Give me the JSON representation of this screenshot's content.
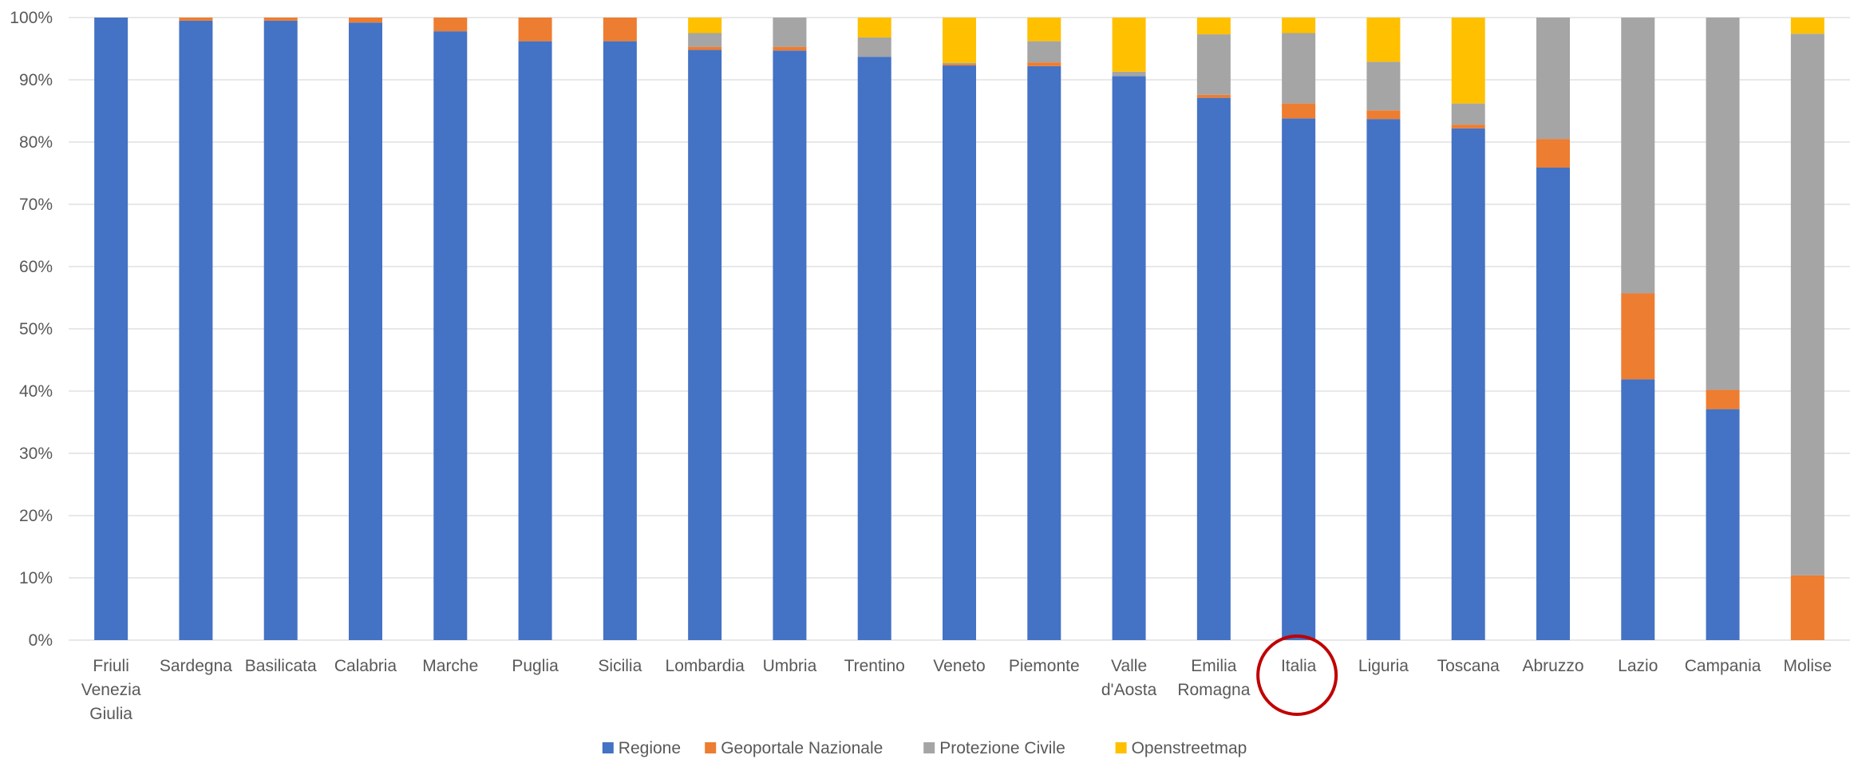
{
  "chart_data": {
    "type": "bar",
    "stacked": "percent",
    "categories": [
      [
        "Friuli",
        "Venezia",
        "Giulia"
      ],
      [
        "Sardegna"
      ],
      [
        "Basilicata"
      ],
      [
        "Calabria"
      ],
      [
        "Marche"
      ],
      [
        "Puglia"
      ],
      [
        "Sicilia"
      ],
      [
        "Lombardia"
      ],
      [
        "Umbria"
      ],
      [
        "Trentino"
      ],
      [
        "Veneto"
      ],
      [
        "Piemonte"
      ],
      [
        "Valle",
        "d'Aosta"
      ],
      [
        "Emilia",
        "Romagna"
      ],
      [
        "Italia"
      ],
      [
        "Liguria"
      ],
      [
        "Toscana"
      ],
      [
        "Abruzzo"
      ],
      [
        "Lazio"
      ],
      [
        "Campania"
      ],
      [
        "Molise"
      ]
    ],
    "series": [
      {
        "name": "Regione",
        "color": "#4472C4",
        "values": [
          100,
          99.5,
          99.5,
          99.2,
          97.8,
          96.2,
          96.2,
          94.8,
          94.7,
          93.7,
          92.3,
          92.2,
          90.6,
          87.1,
          83.8,
          83.7,
          82.2,
          75.9,
          41.9,
          37.1,
          0
        ]
      },
      {
        "name": "Geoportale Nazionale",
        "color": "#ED7D31",
        "values": [
          0,
          0.5,
          0.5,
          0.8,
          2.2,
          3.8,
          3.8,
          0.5,
          0.6,
          0,
          0.2,
          0.6,
          0,
          0.5,
          2.4,
          1.4,
          0.6,
          4.6,
          13.8,
          3.1,
          10.4
        ]
      },
      {
        "name": "Protezione Civile",
        "color": "#A5A5A5",
        "values": [
          0,
          0,
          0,
          0,
          0,
          0,
          0,
          2.2,
          4.7,
          3.1,
          0.2,
          3.4,
          0.7,
          9.7,
          11.3,
          7.8,
          3.4,
          19.5,
          44.3,
          59.8,
          87.0
        ]
      },
      {
        "name": "Openstreetmap",
        "color": "#FFC000",
        "values": [
          0,
          0,
          0,
          0,
          0,
          0,
          0,
          2.5,
          0,
          3.2,
          7.3,
          3.8,
          8.7,
          2.7,
          2.5,
          7.1,
          13.8,
          0,
          0,
          0,
          2.6
        ]
      }
    ],
    "y_ticks": [
      "0%",
      "10%",
      "20%",
      "30%",
      "40%",
      "50%",
      "60%",
      "70%",
      "80%",
      "90%",
      "100%"
    ],
    "ylim": [
      0,
      100
    ],
    "grid": true,
    "legend_position": "bottom",
    "highlight_category": "Italia",
    "highlight_color": "#C00000",
    "gridline_color": "#D9D9D9",
    "axis_text_color": "#595959"
  }
}
